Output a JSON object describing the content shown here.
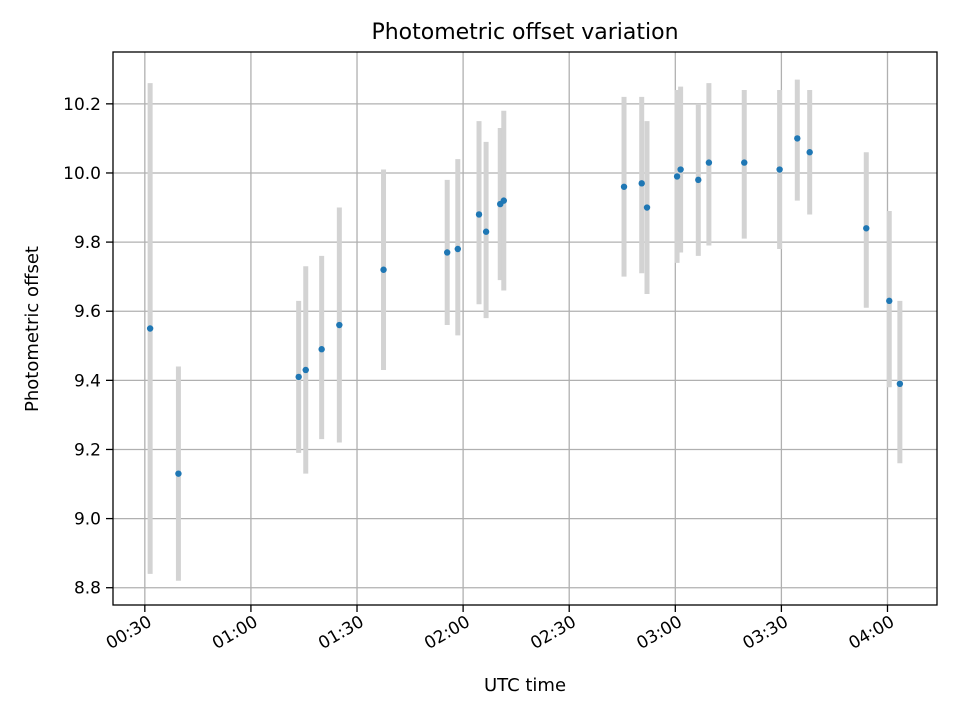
{
  "chart_data": {
    "type": "scatter",
    "title": "Photometric offset variation",
    "xlabel": "UTC time",
    "ylabel": "Photometric offset",
    "x_unit": "UTC time (HH:MM)",
    "xlim": [
      "00:21",
      "04:14"
    ],
    "ylim": [
      8.75,
      10.35
    ],
    "x_ticks": [
      "00:30",
      "01:00",
      "01:30",
      "02:00",
      "02:30",
      "03:00",
      "03:30",
      "04:00"
    ],
    "y_ticks": [
      8.8,
      9.0,
      9.2,
      9.4,
      9.6,
      9.8,
      10.0,
      10.2
    ],
    "y_tick_labels": [
      "8.8",
      "9.0",
      "9.2",
      "9.4",
      "9.6",
      "9.8",
      "10.0",
      "10.2"
    ],
    "grid": true,
    "legend": null,
    "colors": {
      "point": "#1f77b4",
      "errorbar": "#d3d3d3",
      "grid": "#b0b0b0"
    },
    "points": [
      {
        "x": "00:31:30",
        "y": 9.55,
        "ylow": 8.84,
        "yhigh": 10.26
      },
      {
        "x": "00:39:30",
        "y": 9.13,
        "ylow": 8.82,
        "yhigh": 9.44
      },
      {
        "x": "01:13:30",
        "y": 9.41,
        "ylow": 9.19,
        "yhigh": 9.63
      },
      {
        "x": "01:15:30",
        "y": 9.43,
        "ylow": 9.13,
        "yhigh": 9.73
      },
      {
        "x": "01:20:00",
        "y": 9.49,
        "ylow": 9.23,
        "yhigh": 9.76
      },
      {
        "x": "01:25:00",
        "y": 9.56,
        "ylow": 9.22,
        "yhigh": 9.9
      },
      {
        "x": "01:37:30",
        "y": 9.72,
        "ylow": 9.43,
        "yhigh": 10.01
      },
      {
        "x": "01:55:30",
        "y": 9.77,
        "ylow": 9.56,
        "yhigh": 9.98
      },
      {
        "x": "01:58:30",
        "y": 9.78,
        "ylow": 9.53,
        "yhigh": 10.04
      },
      {
        "x": "02:04:30",
        "y": 9.88,
        "ylow": 9.62,
        "yhigh": 10.15
      },
      {
        "x": "02:06:30",
        "y": 9.83,
        "ylow": 9.58,
        "yhigh": 10.09
      },
      {
        "x": "02:10:30",
        "y": 9.91,
        "ylow": 9.69,
        "yhigh": 10.13
      },
      {
        "x": "02:11:30",
        "y": 9.92,
        "ylow": 9.66,
        "yhigh": 10.18
      },
      {
        "x": "02:45:30",
        "y": 9.96,
        "ylow": 9.7,
        "yhigh": 10.22
      },
      {
        "x": "02:50:30",
        "y": 9.97,
        "ylow": 9.71,
        "yhigh": 10.22
      },
      {
        "x": "02:52:00",
        "y": 9.9,
        "ylow": 9.65,
        "yhigh": 10.15
      },
      {
        "x": "03:00:30",
        "y": 9.99,
        "ylow": 9.74,
        "yhigh": 10.24
      },
      {
        "x": "03:01:30",
        "y": 10.01,
        "ylow": 9.77,
        "yhigh": 10.25
      },
      {
        "x": "03:06:30",
        "y": 9.98,
        "ylow": 9.76,
        "yhigh": 10.2
      },
      {
        "x": "03:09:30",
        "y": 10.03,
        "ylow": 9.79,
        "yhigh": 10.26
      },
      {
        "x": "03:19:30",
        "y": 10.03,
        "ylow": 9.81,
        "yhigh": 10.24
      },
      {
        "x": "03:29:30",
        "y": 10.01,
        "ylow": 9.78,
        "yhigh": 10.24
      },
      {
        "x": "03:34:30",
        "y": 10.1,
        "ylow": 9.92,
        "yhigh": 10.27
      },
      {
        "x": "03:38:00",
        "y": 10.06,
        "ylow": 9.88,
        "yhigh": 10.24
      },
      {
        "x": "03:54:00",
        "y": 9.84,
        "ylow": 9.61,
        "yhigh": 10.06
      },
      {
        "x": "04:00:30",
        "y": 9.63,
        "ylow": 9.38,
        "yhigh": 9.89
      },
      {
        "x": "04:03:30",
        "y": 9.39,
        "ylow": 9.16,
        "yhigh": 9.63
      }
    ]
  }
}
